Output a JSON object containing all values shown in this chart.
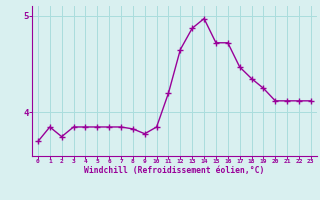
{
  "x": [
    0,
    1,
    2,
    3,
    4,
    5,
    6,
    7,
    8,
    9,
    10,
    11,
    12,
    13,
    14,
    15,
    16,
    17,
    18,
    19,
    20,
    21,
    22,
    23
  ],
  "y": [
    3.7,
    3.85,
    3.75,
    3.85,
    3.85,
    3.85,
    3.85,
    3.85,
    3.83,
    3.78,
    3.85,
    4.2,
    4.65,
    4.87,
    4.97,
    4.72,
    4.72,
    4.47,
    4.35,
    4.25,
    4.12,
    4.12,
    4.12,
    4.12
  ],
  "line_color": "#990099",
  "marker": "+",
  "marker_size": 4,
  "bg_color": "#d9f0f0",
  "grid_color": "#aadddd",
  "xlabel": "Windchill (Refroidissement éolien,°C)",
  "xlabel_color": "#990099",
  "tick_color": "#990099",
  "ylim": [
    3.55,
    5.1
  ],
  "xlim": [
    -0.5,
    23.5
  ],
  "yticks": [
    4,
    5
  ],
  "ytick_labels": [
    "4",
    "5"
  ],
  "xticks": [
    0,
    1,
    2,
    3,
    4,
    5,
    6,
    7,
    8,
    9,
    10,
    11,
    12,
    13,
    14,
    15,
    16,
    17,
    18,
    19,
    20,
    21,
    22,
    23
  ],
  "line_width": 1.0,
  "spine_color": "#990099"
}
